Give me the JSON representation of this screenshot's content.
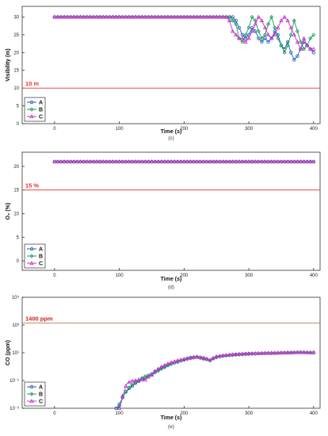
{
  "colors": {
    "A": "#1f5fbf",
    "B": "#1a9a5a",
    "C": "#cc33cc",
    "threshold": "#e83030",
    "threshold_ppm": "#b5805a"
  },
  "chart_data": [
    {
      "type": "line",
      "caption": "(c)",
      "xlabel": "Time (s)",
      "ylabel": "Visibility (m)",
      "xlim": [
        -50,
        410
      ],
      "ylim": [
        0,
        33
      ],
      "xticks": [
        0,
        100,
        200,
        300,
        400
      ],
      "yticks": [
        0,
        5,
        10,
        15,
        20,
        25,
        30
      ],
      "threshold": {
        "value": 10,
        "label": "10 m"
      },
      "legend": "bottom-left",
      "series": [
        {
          "name": "A",
          "x": [
            0,
            270,
            275,
            280,
            285,
            290,
            295,
            300,
            305,
            310,
            315,
            320,
            325,
            330,
            335,
            340,
            345,
            350,
            355,
            360,
            365,
            370,
            375,
            380,
            385,
            390,
            395,
            400
          ],
          "y": [
            30,
            30,
            30,
            29,
            27,
            25,
            24,
            25,
            27,
            26,
            24,
            23,
            24,
            23,
            24,
            26,
            25,
            22,
            21,
            23,
            20,
            18,
            19,
            21,
            23,
            22,
            21,
            20
          ]
        },
        {
          "name": "B",
          "x": [
            0,
            270,
            275,
            280,
            285,
            290,
            295,
            300,
            305,
            310,
            315,
            320,
            325,
            330,
            335,
            340,
            345,
            350,
            355,
            360,
            365,
            370,
            375,
            380,
            385,
            390,
            395,
            400
          ],
          "y": [
            30,
            30,
            29,
            28,
            24,
            23,
            25,
            27,
            30,
            29,
            26,
            24,
            25,
            28,
            30,
            27,
            24,
            22,
            20,
            22,
            25,
            29,
            26,
            23,
            21,
            22,
            24,
            25
          ]
        },
        {
          "name": "C",
          "x": [
            0,
            265,
            270,
            275,
            280,
            285,
            290,
            295,
            300,
            305,
            310,
            315,
            320,
            325,
            330,
            335,
            340,
            345,
            350,
            355,
            360,
            365,
            370,
            375,
            380,
            385,
            390,
            395,
            400
          ],
          "y": [
            30,
            30,
            29,
            26,
            25,
            24,
            24,
            23,
            24,
            26,
            28,
            30,
            29,
            27,
            25,
            24,
            25,
            27,
            29,
            30,
            29,
            27,
            25,
            23,
            21,
            24,
            22,
            21,
            21
          ]
        }
      ]
    },
    {
      "type": "line",
      "caption": "(d)",
      "xlabel": "Time (s)",
      "ylabel": "O₂ (%)",
      "xlim": [
        -50,
        410
      ],
      "ylim": [
        -2,
        23
      ],
      "xticks": [
        0,
        100,
        200,
        300,
        400
      ],
      "yticks": [
        0,
        5,
        10,
        15,
        20
      ],
      "threshold": {
        "value": 15,
        "label": "15 %"
      },
      "legend": "bottom-left",
      "series": [
        {
          "name": "A",
          "x": [
            0,
            400
          ],
          "y": [
            21,
            21
          ]
        },
        {
          "name": "B",
          "x": [
            0,
            400
          ],
          "y": [
            21,
            21
          ]
        },
        {
          "name": "C",
          "x": [
            0,
            400
          ],
          "y": [
            21,
            21
          ]
        }
      ]
    },
    {
      "type": "line",
      "caption": "(e)",
      "xlabel": "Time (s)",
      "ylabel": "CO (ppm)",
      "yscale": "log",
      "xlim": [
        -50,
        410
      ],
      "ylim": [
        0.001,
        100000
      ],
      "xticks": [
        0,
        100,
        200,
        300,
        400
      ],
      "yticks": [
        0.001,
        0.1,
        10,
        1000,
        100000
      ],
      "ytick_labels": [
        "10⁻³",
        "10⁻¹",
        "10¹",
        "10³",
        "10⁵"
      ],
      "threshold": {
        "value": 1400,
        "label": "1400 ppm"
      },
      "legend": "bottom-left",
      "series": [
        {
          "name": "A",
          "x": [
            95,
            100,
            105,
            110,
            120,
            130,
            140,
            150,
            160,
            170,
            180,
            190,
            200,
            210,
            220,
            230,
            240,
            250,
            260,
            280,
            300,
            320,
            340,
            360,
            380,
            400
          ],
          "y": [
            0.001,
            0.0015,
            0.006,
            0.015,
            0.04,
            0.09,
            0.15,
            0.3,
            0.6,
            1.0,
            1.6,
            2.2,
            3.2,
            4.5,
            5.0,
            4.2,
            2.8,
            5.0,
            6.0,
            7.5,
            8.5,
            9.0,
            9.5,
            10,
            10.5,
            10
          ]
        },
        {
          "name": "B",
          "x": [
            98,
            102,
            107,
            112,
            120,
            130,
            140,
            150,
            160,
            170,
            180,
            190,
            200,
            210,
            220,
            230,
            240,
            250,
            260,
            280,
            300,
            320,
            340,
            360,
            380,
            400
          ],
          "y": [
            0.001,
            0.003,
            0.009,
            0.02,
            0.05,
            0.1,
            0.2,
            0.25,
            0.5,
            0.9,
            1.5,
            2.5,
            3.0,
            4.0,
            4.8,
            3.6,
            3.0,
            4.6,
            6.2,
            7.0,
            8.0,
            9.2,
            9.0,
            10.5,
            11,
            10.5
          ]
        },
        {
          "name": "C",
          "x": [
            100,
            104,
            108,
            112,
            118,
            125,
            132,
            140,
            150,
            160,
            170,
            180,
            190,
            200,
            210,
            220,
            230,
            240,
            250,
            260,
            280,
            300,
            320,
            340,
            360,
            380,
            400
          ],
          "y": [
            0.001,
            0.004,
            0.02,
            0.06,
            0.09,
            0.1,
            0.12,
            0.11,
            0.25,
            0.7,
            1.3,
            2.0,
            2.8,
            3.5,
            4.3,
            5.2,
            4.0,
            3.1,
            5.4,
            6.4,
            7.8,
            8.8,
            9.4,
            9.8,
            10.2,
            11,
            10.8
          ]
        }
      ]
    }
  ]
}
